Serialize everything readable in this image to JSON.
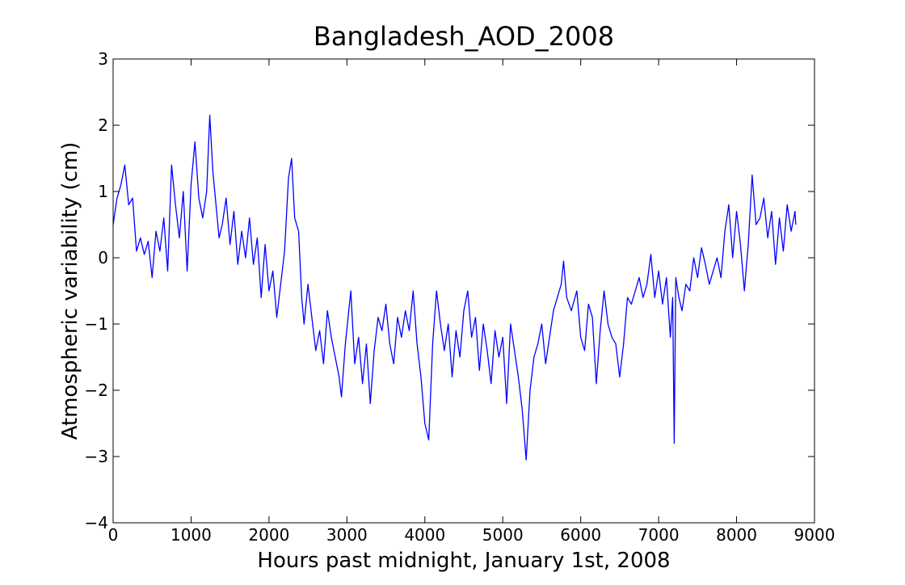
{
  "chart_data": {
    "type": "line",
    "title": "Bangladesh_AOD_2008",
    "x_label": "Hours past midnight, January 1st, 2008",
    "y_label": "Atmospheric variability (cm)",
    "xlim": [
      0,
      9000
    ],
    "xticks": [
      0,
      1000,
      2000,
      3000,
      4000,
      5000,
      6000,
      7000,
      8000,
      9000
    ],
    "ylim": [
      -4,
      3
    ],
    "yticks": [
      {
        "value": -4,
        "label": "−4"
      },
      {
        "value": -3,
        "label": "−3"
      },
      {
        "value": -2,
        "label": "−2"
      },
      {
        "value": -1,
        "label": "−1"
      },
      0,
      1,
      2,
      3
    ],
    "grid": false,
    "series": [
      {
        "color": "#0000ff",
        "x": [
          0,
          50,
          100,
          150,
          200,
          250,
          300,
          350,
          400,
          450,
          500,
          550,
          600,
          650,
          700,
          750,
          800,
          850,
          900,
          950,
          1000,
          1050,
          1100,
          1150,
          1200,
          1240,
          1280,
          1320,
          1360,
          1400,
          1450,
          1500,
          1550,
          1600,
          1650,
          1700,
          1750,
          1800,
          1850,
          1900,
          1950,
          2000,
          2050,
          2100,
          2150,
          2200,
          2250,
          2290,
          2330,
          2380,
          2420,
          2450,
          2500,
          2550,
          2600,
          2650,
          2700,
          2750,
          2800,
          2850,
          2900,
          2930,
          2980,
          3050,
          3100,
          3150,
          3200,
          3250,
          3300,
          3350,
          3400,
          3450,
          3500,
          3550,
          3600,
          3650,
          3700,
          3750,
          3800,
          3850,
          3900,
          3950,
          4000,
          4050,
          4100,
          4150,
          4200,
          4250,
          4300,
          4350,
          4400,
          4450,
          4500,
          4550,
          4600,
          4650,
          4700,
          4750,
          4800,
          4850,
          4900,
          4950,
          5000,
          5050,
          5100,
          5150,
          5200,
          5250,
          5300,
          5350,
          5400,
          5450,
          5500,
          5550,
          5600,
          5650,
          5700,
          5750,
          5780,
          5820,
          5880,
          5950,
          6000,
          6050,
          6100,
          6150,
          6200,
          6250,
          6300,
          6350,
          6400,
          6450,
          6500,
          6550,
          6600,
          6650,
          6700,
          6750,
          6800,
          6850,
          6900,
          6950,
          7000,
          7050,
          7100,
          7150,
          7180,
          7200,
          7220,
          7260,
          7300,
          7350,
          7400,
          7450,
          7500,
          7550,
          7600,
          7650,
          7700,
          7750,
          7800,
          7850,
          7900,
          7950,
          8000,
          8050,
          8100,
          8150,
          8200,
          8250,
          8300,
          8350,
          8400,
          8450,
          8500,
          8550,
          8600,
          8650,
          8700,
          8750,
          8760
        ],
        "values": [
          0.5,
          0.9,
          1.1,
          1.4,
          0.8,
          0.9,
          0.1,
          0.3,
          0.05,
          0.25,
          -0.3,
          0.4,
          0.1,
          0.6,
          -0.2,
          1.4,
          0.8,
          0.3,
          1.0,
          -0.2,
          1.1,
          1.75,
          0.9,
          0.6,
          1.0,
          2.15,
          1.3,
          0.8,
          0.3,
          0.5,
          0.9,
          0.2,
          0.7,
          -0.1,
          0.4,
          0.0,
          0.6,
          -0.1,
          0.3,
          -0.6,
          0.2,
          -0.5,
          -0.2,
          -0.9,
          -0.4,
          0.1,
          1.2,
          1.5,
          0.6,
          0.4,
          -0.6,
          -1.0,
          -0.4,
          -0.9,
          -1.4,
          -1.1,
          -1.6,
          -0.8,
          -1.2,
          -1.5,
          -1.8,
          -2.1,
          -1.3,
          -0.5,
          -1.6,
          -1.2,
          -1.9,
          -1.3,
          -2.2,
          -1.4,
          -0.9,
          -1.1,
          -0.7,
          -1.3,
          -1.6,
          -0.9,
          -1.2,
          -0.8,
          -1.1,
          -0.5,
          -1.3,
          -1.8,
          -2.5,
          -2.75,
          -1.3,
          -0.5,
          -1.0,
          -1.4,
          -1.0,
          -1.8,
          -1.1,
          -1.5,
          -0.8,
          -0.5,
          -1.2,
          -0.9,
          -1.7,
          -1.0,
          -1.4,
          -1.9,
          -1.1,
          -1.5,
          -1.2,
          -2.2,
          -1.0,
          -1.4,
          -1.8,
          -2.3,
          -3.05,
          -2.0,
          -1.5,
          -1.3,
          -1.0,
          -1.6,
          -1.2,
          -0.8,
          -0.6,
          -0.4,
          -0.05,
          -0.6,
          -0.8,
          -0.5,
          -1.2,
          -1.4,
          -0.7,
          -0.9,
          -1.9,
          -1.1,
          -0.5,
          -1.0,
          -1.2,
          -1.3,
          -1.8,
          -1.3,
          -0.6,
          -0.7,
          -0.5,
          -0.3,
          -0.6,
          -0.4,
          0.05,
          -0.6,
          -0.2,
          -0.7,
          -0.3,
          -1.2,
          -0.6,
          -2.8,
          -0.3,
          -0.6,
          -0.8,
          -0.4,
          -0.5,
          0.0,
          -0.3,
          0.15,
          -0.1,
          -0.4,
          -0.2,
          0.0,
          -0.3,
          0.4,
          0.8,
          0.0,
          0.7,
          0.2,
          -0.5,
          0.2,
          1.25,
          0.5,
          0.6,
          0.9,
          0.3,
          0.7,
          -0.1,
          0.6,
          0.1,
          0.8,
          0.4,
          0.7,
          0.5
        ]
      }
    ]
  }
}
